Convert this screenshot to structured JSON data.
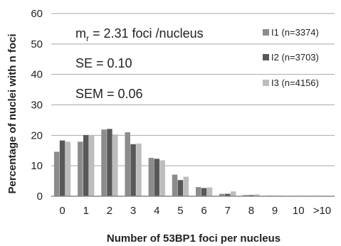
{
  "chart_data": {
    "type": "bar",
    "xlabel": "Number of 53BP1 foci per nucleus",
    "ylabel": "Percentage of nuclei with n foci",
    "ylim": [
      0,
      60
    ],
    "yticks": [
      0,
      10,
      20,
      30,
      40,
      50,
      60
    ],
    "grid": true,
    "legend_position": "right",
    "categories": [
      "0",
      "1",
      "2",
      "3",
      "4",
      "5",
      "6",
      "7",
      "8",
      "9",
      "10",
      ">10"
    ],
    "series": [
      {
        "name": "I1 (n=3374)",
        "color": "#8c8c8c",
        "values": [
          14.6,
          17.9,
          21.9,
          21.0,
          12.6,
          7.1,
          3.0,
          0.8,
          0.4,
          0.2,
          0.1,
          0.1
        ]
      },
      {
        "name": "I2 (n=3703)",
        "color": "#585858",
        "values": [
          18.3,
          20.1,
          22.1,
          17.1,
          12.3,
          5.3,
          2.7,
          0.8,
          0.4,
          0.1,
          0.1,
          0.1
        ]
      },
      {
        "name": "I3 (n=4156)",
        "color": "#bdbdbd",
        "values": [
          17.9,
          20.1,
          20.3,
          17.3,
          11.8,
          6.4,
          2.9,
          1.6,
          0.6,
          0.2,
          0.1,
          0.1
        ]
      }
    ],
    "annotations": {
      "mr_prefix": "m",
      "mr_sub": "r",
      "mr_value": " = 2.31 foci /nucleus",
      "se": "SE = 0.10",
      "sem": "SEM = 0.06"
    }
  }
}
